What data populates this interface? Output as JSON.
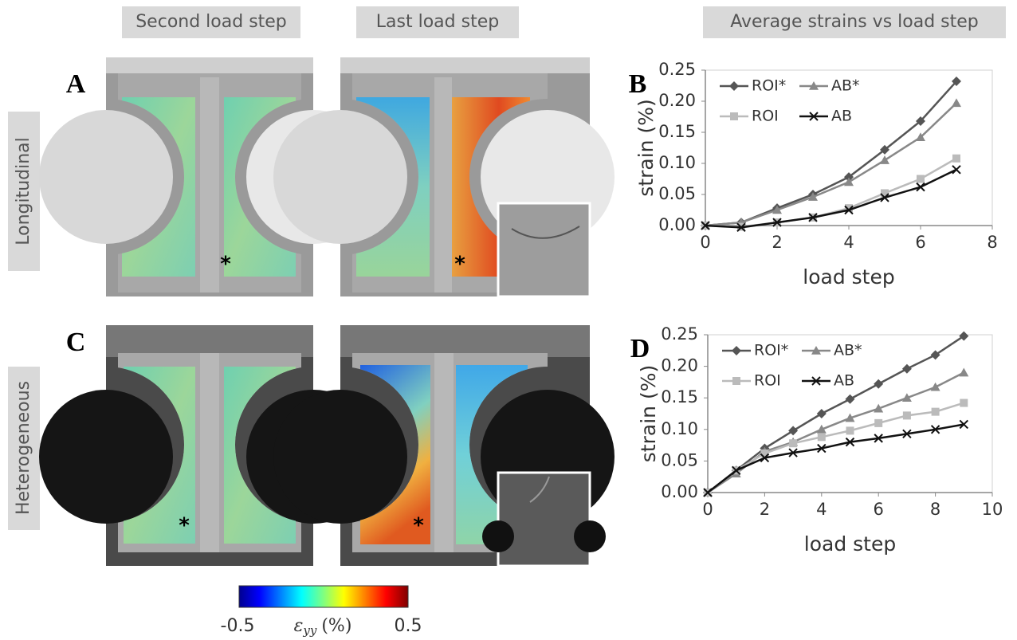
{
  "figure": {
    "columns": [
      "Second load step",
      "Last load step",
      "Average strains vs load step"
    ],
    "rows": [
      "Longitudinal",
      "Heterogeneous"
    ],
    "panels": [
      "A",
      "C"
    ],
    "annotation": "*",
    "colorbar": {
      "min": -0.5,
      "max": 0.5,
      "symbol": "ε",
      "subscript": "yy",
      "unit": "(%)"
    }
  },
  "chart_data": [
    {
      "type": "line",
      "label": "B",
      "xlabel": "load step",
      "ylabel": "strain (%)",
      "x": [
        0,
        1,
        2,
        3,
        4,
        5,
        6,
        7
      ],
      "xlim": [
        0,
        8
      ],
      "xticks": [
        0,
        2,
        4,
        6,
        8
      ],
      "ylim": [
        0,
        0.25
      ],
      "yticks": [
        {
          "value": 0,
          "label": "0.00"
        },
        {
          "value": 0.05,
          "label": "0.05"
        },
        {
          "value": 0.1,
          "label": "0.10"
        },
        {
          "value": 0.15,
          "label": "0.15"
        },
        {
          "value": 0.2,
          "label": "0.20"
        },
        {
          "value": 0.25,
          "label": "0.25"
        }
      ],
      "legend": "upper left",
      "series": [
        {
          "name": "ROI*",
          "color": "#555555",
          "marker": "diamond",
          "values": [
            0,
            0.005,
            0.028,
            0.05,
            0.078,
            0.122,
            0.168,
            0.232
          ]
        },
        {
          "name": "AB*",
          "color": "#888888",
          "marker": "triangle",
          "values": [
            0,
            0.005,
            0.025,
            0.046,
            0.07,
            0.105,
            0.142,
            0.197
          ]
        },
        {
          "name": "ROI",
          "color": "#bbbbbb",
          "marker": "square",
          "values": [
            0,
            -0.002,
            0.005,
            0.013,
            0.028,
            0.052,
            0.075,
            0.108
          ]
        },
        {
          "name": "AB",
          "color": "#111111",
          "marker": "x",
          "values": [
            0,
            -0.003,
            0.005,
            0.013,
            0.025,
            0.045,
            0.062,
            0.09
          ]
        }
      ]
    },
    {
      "type": "line",
      "label": "D",
      "xlabel": "load step",
      "ylabel": "strain (%)",
      "x": [
        0,
        1,
        2,
        3,
        4,
        5,
        6,
        7,
        8,
        9
      ],
      "xlim": [
        0,
        10
      ],
      "xticks": [
        0,
        2,
        4,
        6,
        8,
        10
      ],
      "ylim": [
        0,
        0.25
      ],
      "yticks": [
        {
          "value": 0,
          "label": "0.00"
        },
        {
          "value": 0.05,
          "label": "0.05"
        },
        {
          "value": 0.1,
          "label": "0.10"
        },
        {
          "value": 0.15,
          "label": "0.15"
        },
        {
          "value": 0.2,
          "label": "0.20"
        },
        {
          "value": 0.25,
          "label": "0.25"
        }
      ],
      "legend": "upper left",
      "series": [
        {
          "name": "ROI*",
          "color": "#555555",
          "marker": "diamond",
          "values": [
            0,
            0.035,
            0.07,
            0.098,
            0.125,
            0.148,
            0.172,
            0.196,
            0.218,
            0.248
          ]
        },
        {
          "name": "AB*",
          "color": "#888888",
          "marker": "triangle",
          "values": [
            0,
            0.03,
            0.065,
            0.08,
            0.1,
            0.118,
            0.133,
            0.15,
            0.167,
            0.19
          ]
        },
        {
          "name": "ROI",
          "color": "#bbbbbb",
          "marker": "square",
          "values": [
            0,
            0.035,
            0.062,
            0.078,
            0.088,
            0.098,
            0.11,
            0.122,
            0.128,
            0.142
          ]
        },
        {
          "name": "AB",
          "color": "#111111",
          "marker": "x",
          "values": [
            0,
            0.035,
            0.055,
            0.063,
            0.07,
            0.08,
            0.086,
            0.093,
            0.1,
            0.108
          ]
        }
      ]
    }
  ]
}
